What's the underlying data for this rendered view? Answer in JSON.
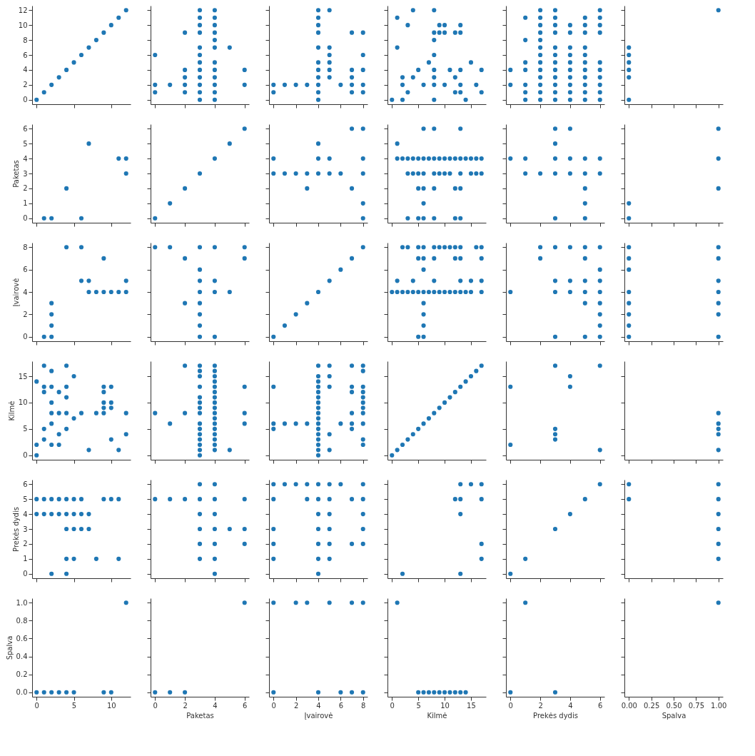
{
  "chart_data": [
    {
      "type": "scatter",
      "marker": "circle",
      "xlim": [
        -0.6,
        12.6
      ],
      "ylim": [
        -0.6,
        12.6
      ],
      "yticks": [
        0,
        2,
        4,
        6,
        8,
        10,
        12
      ],
      "tick_labels": "y",
      "series": [
        {
          "color": "#1f77b4",
          "x": [
            0,
            1,
            2,
            3,
            4,
            5,
            6,
            7,
            8,
            9,
            10,
            11,
            12
          ],
          "values": [
            0,
            1,
            2,
            3,
            4,
            5,
            6,
            7,
            8,
            9,
            10,
            11,
            12
          ]
        }
      ]
    },
    {
      "type": "scatter",
      "marker": "circle",
      "xlim": [
        -0.3,
        6.3
      ],
      "ylim": [
        -0.6,
        12.6
      ],
      "tick_labels": false,
      "series": [
        {
          "color": "#1f77b4",
          "x": [
            0,
            0,
            0,
            1,
            2,
            2,
            2,
            2,
            2,
            3,
            3,
            3,
            3,
            3,
            3,
            3,
            3,
            3,
            3,
            3,
            3,
            4,
            4,
            4,
            4,
            4,
            4,
            4,
            4,
            4,
            4,
            4,
            4,
            5,
            6,
            6
          ],
          "values": [
            6,
            2,
            1,
            2,
            9,
            4,
            3,
            2,
            1,
            12,
            11,
            10,
            9,
            7,
            6,
            5,
            4,
            3,
            2,
            1,
            0,
            12,
            11,
            10,
            9,
            8,
            7,
            5,
            4,
            3,
            2,
            1,
            0,
            7,
            4,
            2
          ]
        }
      ]
    },
    {
      "type": "scatter",
      "marker": "circle",
      "xlim": [
        -0.4,
        8.4
      ],
      "ylim": [
        -0.6,
        12.6
      ],
      "tick_labels": false,
      "series": [
        {
          "color": "#1f77b4",
          "x": [
            0,
            0,
            1,
            2,
            3,
            4,
            4,
            4,
            4,
            4,
            4,
            4,
            4,
            4,
            4,
            4,
            5,
            5,
            5,
            5,
            5,
            5,
            6,
            7,
            7,
            7,
            7,
            7,
            8,
            8,
            8,
            8,
            8
          ],
          "values": [
            2,
            1,
            2,
            2,
            2,
            12,
            11,
            10,
            9,
            7,
            5,
            4,
            3,
            2,
            1,
            0,
            12,
            7,
            6,
            5,
            4,
            3,
            2,
            9,
            4,
            3,
            2,
            1,
            9,
            6,
            4,
            2,
            1
          ]
        }
      ]
    },
    {
      "type": "scatter",
      "marker": "circle",
      "xlim": [
        -0.85,
        17.85
      ],
      "ylim": [
        -0.6,
        12.6
      ],
      "tick_labels": false,
      "series": [
        {
          "color": "#1f77b4",
          "x": [
            0,
            1,
            1,
            2,
            2,
            2,
            3,
            3,
            4,
            4,
            5,
            6,
            7,
            8,
            8,
            8,
            8,
            8,
            8,
            8,
            8,
            9,
            9,
            10,
            10,
            10,
            11,
            12,
            12,
            12,
            13,
            13,
            13,
            13,
            13,
            14,
            15,
            16,
            17,
            17
          ],
          "values": [
            0,
            11,
            7,
            3,
            2,
            0,
            10,
            1,
            12,
            3,
            4,
            2,
            5,
            12,
            9,
            8,
            6,
            4,
            3,
            2,
            0,
            10,
            9,
            10,
            9,
            2,
            4,
            9,
            3,
            1,
            10,
            9,
            4,
            2,
            1,
            0,
            5,
            2,
            4,
            1
          ]
        }
      ]
    },
    {
      "type": "scatter",
      "marker": "circle",
      "xlim": [
        -0.3,
        6.3
      ],
      "ylim": [
        -0.6,
        12.6
      ],
      "tick_labels": false,
      "series": [
        {
          "color": "#1f77b4",
          "x": [
            0,
            0,
            1,
            1,
            1,
            1,
            1,
            1,
            1,
            2,
            2,
            2,
            2,
            2,
            2,
            2,
            2,
            2,
            2,
            2,
            2,
            2,
            3,
            3,
            3,
            3,
            3,
            3,
            3,
            3,
            3,
            3,
            3,
            3,
            4,
            4,
            4,
            4,
            4,
            4,
            4,
            4,
            4,
            4,
            5,
            5,
            5,
            5,
            5,
            5,
            5,
            5,
            5,
            5,
            5,
            6,
            6,
            6,
            6,
            6,
            6,
            6,
            6,
            6,
            6
          ],
          "values": [
            4,
            2,
            11,
            8,
            5,
            4,
            2,
            1,
            0,
            12,
            11,
            10,
            9,
            8,
            7,
            6,
            5,
            4,
            3,
            2,
            1,
            0,
            12,
            11,
            10,
            9,
            7,
            6,
            5,
            4,
            3,
            2,
            1,
            0,
            10,
            9,
            7,
            6,
            5,
            4,
            3,
            2,
            1,
            0,
            11,
            10,
            9,
            7,
            6,
            5,
            4,
            3,
            2,
            1,
            0,
            12,
            11,
            10,
            9,
            5,
            4,
            3,
            2,
            1,
            0
          ]
        }
      ]
    },
    {
      "type": "scatter",
      "marker": "circle",
      "xlim": [
        -0.05,
        1.05
      ],
      "ylim": [
        -0.6,
        12.6
      ],
      "tick_labels": false,
      "series": [
        {
          "color": "#1f77b4",
          "x": [
            0,
            0,
            0,
            0,
            0,
            0,
            1
          ],
          "values": [
            7,
            6,
            5,
            4,
            3,
            0,
            12
          ]
        }
      ]
    },
    {
      "type": "scatter",
      "marker": "circle",
      "xlim": [
        -0.6,
        12.6
      ],
      "ylim": [
        -0.3,
        6.3
      ],
      "yticks": [
        0,
        1,
        2,
        3,
        4,
        5,
        6
      ],
      "ylabel": "Paketas",
      "tick_labels": "y",
      "series": [
        {
          "color": "#1f77b4",
          "x": [
            1,
            2,
            6,
            4,
            7,
            11,
            12,
            12
          ],
          "values": [
            0,
            0,
            0,
            2,
            5,
            4,
            4,
            3
          ]
        }
      ]
    },
    {
      "type": "scatter",
      "marker": "circle",
      "xlim": [
        -0.3,
        6.3
      ],
      "ylim": [
        -0.3,
        6.3
      ],
      "tick_labels": false,
      "series": [
        {
          "color": "#1f77b4",
          "x": [
            0,
            1,
            2,
            3,
            4,
            5,
            6
          ],
          "values": [
            0,
            1,
            2,
            3,
            4,
            5,
            6
          ]
        }
      ]
    },
    {
      "type": "scatter",
      "marker": "circle",
      "xlim": [
        -0.4,
        8.4
      ],
      "ylim": [
        -0.3,
        6.3
      ],
      "tick_labels": false,
      "series": [
        {
          "color": "#1f77b4",
          "x": [
            0,
            0,
            1,
            2,
            3,
            3,
            4,
            4,
            4,
            5,
            5,
            6,
            7,
            7,
            8,
            8,
            8,
            8,
            8
          ],
          "values": [
            4,
            3,
            3,
            3,
            3,
            2,
            5,
            4,
            3,
            4,
            3,
            3,
            6,
            2,
            6,
            4,
            3,
            1,
            0
          ]
        }
      ]
    },
    {
      "type": "scatter",
      "marker": "circle",
      "xlim": [
        -0.85,
        17.85
      ],
      "ylim": [
        -0.3,
        6.3
      ],
      "tick_labels": false,
      "series": [
        {
          "color": "#1f77b4",
          "x": [
            1,
            1,
            2,
            3,
            4,
            5,
            6,
            7,
            8,
            9,
            10,
            11,
            12,
            13,
            14,
            15,
            16,
            17,
            3,
            4,
            5,
            6,
            8,
            9,
            10,
            11,
            13,
            15,
            16,
            17,
            5,
            6,
            8,
            12,
            13,
            6,
            8,
            13,
            6,
            3,
            5,
            6,
            8,
            12,
            13
          ],
          "values": [
            5,
            4,
            4,
            4,
            4,
            4,
            4,
            4,
            4,
            4,
            4,
            4,
            4,
            4,
            4,
            4,
            4,
            4,
            3,
            3,
            3,
            3,
            3,
            3,
            3,
            3,
            3,
            3,
            3,
            3,
            2,
            2,
            2,
            2,
            2,
            6,
            6,
            6,
            1,
            0,
            0,
            0,
            0,
            0,
            0
          ]
        }
      ]
    },
    {
      "type": "scatter",
      "marker": "circle",
      "xlim": [
        -0.3,
        6.3
      ],
      "ylim": [
        -0.3,
        6.3
      ],
      "tick_labels": false,
      "series": [
        {
          "color": "#1f77b4",
          "x": [
            0,
            1,
            3,
            4,
            5,
            6,
            1,
            2,
            3,
            4,
            5,
            6,
            3,
            4,
            3,
            5,
            5,
            3,
            5
          ],
          "values": [
            4,
            4,
            4,
            4,
            4,
            4,
            3,
            3,
            3,
            3,
            3,
            3,
            6,
            6,
            5,
            2,
            1,
            0,
            0
          ]
        }
      ]
    },
    {
      "type": "scatter",
      "marker": "circle",
      "xlim": [
        -0.05,
        1.05
      ],
      "ylim": [
        -0.3,
        6.3
      ],
      "tick_labels": false,
      "series": [
        {
          "color": "#1f77b4",
          "x": [
            0,
            0,
            1,
            1,
            1
          ],
          "values": [
            1,
            0,
            6,
            4,
            2
          ]
        }
      ]
    },
    {
      "type": "scatter",
      "marker": "circle",
      "xlim": [
        -0.6,
        12.6
      ],
      "ylim": [
        -0.4,
        8.4
      ],
      "yticks": [
        0,
        2,
        4,
        6,
        8
      ],
      "ylabel": "Įvairovė",
      "tick_labels": "y",
      "series": [
        {
          "color": "#1f77b4",
          "x": [
            4,
            6,
            9,
            6,
            7,
            12,
            7,
            8,
            9,
            10,
            11,
            12,
            2,
            2,
            2,
            1,
            2
          ],
          "values": [
            8,
            8,
            7,
            5,
            5,
            5,
            4,
            4,
            4,
            4,
            4,
            4,
            3,
            2,
            1,
            0,
            0
          ]
        }
      ]
    },
    {
      "type": "scatter",
      "marker": "circle",
      "xlim": [
        -0.3,
        6.3
      ],
      "ylim": [
        -0.4,
        8.4
      ],
      "tick_labels": false,
      "series": [
        {
          "color": "#1f77b4",
          "x": [
            0,
            1,
            3,
            4,
            6,
            2,
            6,
            3,
            3,
            4,
            3,
            4,
            5,
            2,
            3,
            3,
            3,
            3,
            4
          ],
          "values": [
            8,
            8,
            8,
            8,
            8,
            7,
            7,
            6,
            5,
            5,
            4,
            4,
            4,
            3,
            3,
            2,
            1,
            0,
            0
          ]
        }
      ]
    },
    {
      "type": "scatter",
      "marker": "circle",
      "xlim": [
        -0.4,
        8.4
      ],
      "ylim": [
        -0.4,
        8.4
      ],
      "tick_labels": false,
      "series": [
        {
          "color": "#1f77b4",
          "x": [
            0,
            1,
            2,
            3,
            4,
            5,
            6,
            7,
            8
          ],
          "values": [
            0,
            1,
            2,
            3,
            4,
            5,
            6,
            7,
            8
          ]
        }
      ]
    },
    {
      "type": "scatter",
      "marker": "circle",
      "xlim": [
        -0.85,
        17.85
      ],
      "ylim": [
        -0.4,
        8.4
      ],
      "tick_labels": false,
      "series": [
        {
          "color": "#1f77b4",
          "x": [
            2,
            3,
            5,
            6,
            8,
            9,
            10,
            11,
            12,
            13,
            16,
            17,
            5,
            6,
            8,
            12,
            13,
            17,
            6,
            1,
            4,
            8,
            13,
            15,
            17,
            0,
            1,
            2,
            3,
            4,
            5,
            6,
            7,
            8,
            9,
            10,
            11,
            12,
            13,
            14,
            15,
            17,
            6,
            6,
            6,
            5,
            6
          ],
          "values": [
            8,
            8,
            8,
            8,
            8,
            8,
            8,
            8,
            8,
            8,
            8,
            8,
            7,
            7,
            7,
            7,
            7,
            7,
            6,
            5,
            5,
            5,
            5,
            5,
            5,
            4,
            4,
            4,
            4,
            4,
            4,
            4,
            4,
            4,
            4,
            4,
            4,
            4,
            4,
            4,
            4,
            4,
            3,
            2,
            1,
            0,
            0
          ]
        }
      ]
    },
    {
      "type": "scatter",
      "marker": "circle",
      "xlim": [
        -0.3,
        6.3
      ],
      "ylim": [
        -0.4,
        8.4
      ],
      "tick_labels": false,
      "series": [
        {
          "color": "#1f77b4",
          "x": [
            2,
            3,
            4,
            5,
            6,
            2,
            5,
            6,
            3,
            4,
            5,
            6,
            0,
            3,
            4,
            5,
            6,
            5,
            6,
            6,
            6,
            3,
            5,
            6
          ],
          "values": [
            8,
            8,
            8,
            8,
            8,
            7,
            7,
            6,
            5,
            5,
            5,
            5,
            4,
            4,
            4,
            4,
            4,
            3,
            3,
            2,
            1,
            0,
            0,
            0
          ]
        }
      ]
    },
    {
      "type": "scatter",
      "marker": "circle",
      "xlim": [
        -0.05,
        1.05
      ],
      "ylim": [
        -0.4,
        8.4
      ],
      "tick_labels": false,
      "series": [
        {
          "color": "#1f77b4",
          "x": [
            0,
            0,
            0,
            0,
            0,
            0,
            0,
            0,
            1,
            1,
            1,
            1,
            1,
            1,
            1
          ],
          "values": [
            8,
            7,
            6,
            4,
            3,
            2,
            1,
            0,
            8,
            7,
            5,
            4,
            3,
            2,
            0
          ]
        }
      ]
    },
    {
      "type": "scatter",
      "marker": "circle",
      "xlim": [
        -0.6,
        12.6
      ],
      "ylim": [
        -0.85,
        17.85
      ],
      "yticks": [
        0,
        5,
        10,
        15
      ],
      "ylabel": "Kilmė",
      "tick_labels": "y",
      "series": [
        {
          "color": "#1f77b4",
          "x": [
            0,
            0,
            0,
            1,
            1,
            1,
            1,
            1,
            2,
            2,
            2,
            2,
            2,
            2,
            3,
            3,
            3,
            3,
            4,
            4,
            4,
            4,
            4,
            5,
            5,
            6,
            7,
            8,
            9,
            9,
            9,
            9,
            9,
            10,
            10,
            10,
            10,
            11,
            12,
            12
          ],
          "values": [
            0,
            2,
            14,
            17,
            5,
            3,
            13,
            12,
            16,
            13,
            10,
            8,
            6,
            2,
            12,
            8,
            4,
            2,
            17,
            13,
            11,
            8,
            5,
            15,
            7,
            8,
            1,
            8,
            13,
            12,
            10,
            9,
            8,
            13,
            10,
            9,
            3,
            1,
            8,
            4
          ]
        }
      ]
    },
    {
      "type": "scatter",
      "marker": "circle",
      "xlim": [
        -0.3,
        6.3
      ],
      "ylim": [
        -0.85,
        17.85
      ],
      "tick_labels": false,
      "series": [
        {
          "color": "#1f77b4",
          "x": [
            0,
            1,
            2,
            2,
            3,
            3,
            3,
            3,
            3,
            3,
            3,
            3,
            3,
            3,
            3,
            3,
            3,
            3,
            3,
            4,
            4,
            4,
            4,
            4,
            4,
            4,
            4,
            4,
            4,
            4,
            4,
            4,
            4,
            4,
            4,
            4,
            5,
            6,
            6,
            6
          ],
          "values": [
            8,
            6,
            17,
            8,
            17,
            16,
            15,
            13,
            11,
            10,
            9,
            8,
            6,
            5,
            4,
            3,
            2,
            1,
            0,
            17,
            16,
            15,
            14,
            13,
            12,
            11,
            10,
            9,
            8,
            7,
            6,
            5,
            4,
            3,
            2,
            1,
            1,
            13,
            8,
            6
          ]
        }
      ]
    },
    {
      "type": "scatter",
      "marker": "circle",
      "xlim": [
        -0.4,
        8.4
      ],
      "ylim": [
        -0.85,
        17.85
      ],
      "tick_labels": false,
      "series": [
        {
          "color": "#1f77b4",
          "x": [
            0,
            0,
            0,
            1,
            2,
            3,
            4,
            4,
            4,
            4,
            4,
            4,
            4,
            4,
            4,
            4,
            4,
            4,
            4,
            4,
            4,
            4,
            4,
            5,
            5,
            5,
            5,
            5,
            6,
            7,
            7,
            7,
            7,
            7,
            7,
            8,
            8,
            8,
            8,
            8,
            8,
            8,
            8,
            8,
            8,
            8
          ],
          "values": [
            13,
            6,
            5,
            6,
            6,
            6,
            17,
            15,
            14,
            13,
            12,
            11,
            10,
            9,
            8,
            7,
            6,
            5,
            4,
            3,
            2,
            1,
            0,
            17,
            15,
            13,
            4,
            1,
            6,
            17,
            13,
            12,
            8,
            6,
            5,
            17,
            16,
            13,
            12,
            11,
            10,
            9,
            8,
            6,
            3,
            2
          ]
        }
      ]
    },
    {
      "type": "scatter",
      "marker": "circle",
      "xlim": [
        -0.85,
        17.85
      ],
      "ylim": [
        -0.85,
        17.85
      ],
      "tick_labels": false,
      "series": [
        {
          "color": "#1f77b4",
          "x": [
            0,
            1,
            2,
            3,
            4,
            5,
            6,
            7,
            8,
            9,
            10,
            11,
            12,
            13,
            14,
            15,
            16,
            17
          ],
          "values": [
            0,
            1,
            2,
            3,
            4,
            5,
            6,
            7,
            8,
            9,
            10,
            11,
            12,
            13,
            14,
            15,
            16,
            17
          ]
        }
      ]
    },
    {
      "type": "scatter",
      "marker": "circle",
      "xlim": [
        -0.3,
        6.3
      ],
      "ylim": [
        -0.85,
        17.85
      ],
      "tick_labels": false,
      "series": [
        {
          "color": "#1f77b4",
          "x": [
            0,
            0,
            3,
            3,
            3,
            3,
            4,
            4,
            6,
            6
          ],
          "values": [
            13,
            2,
            17,
            5,
            4,
            3,
            15,
            13,
            17,
            1
          ]
        }
      ]
    },
    {
      "type": "scatter",
      "marker": "circle",
      "xlim": [
        -0.05,
        1.05
      ],
      "ylim": [
        -0.85,
        17.85
      ],
      "tick_labels": false,
      "series": [
        {
          "color": "#1f77b4",
          "x": [
            1,
            1,
            1,
            1,
            1
          ],
          "values": [
            8,
            6,
            5,
            4,
            1
          ]
        }
      ]
    },
    {
      "type": "scatter",
      "marker": "circle",
      "xlim": [
        -0.6,
        12.6
      ],
      "ylim": [
        -0.3,
        6.3
      ],
      "yticks": [
        0,
        1,
        2,
        3,
        4,
        5,
        6
      ],
      "ylabel": "Prekės dydis",
      "tick_labels": "y",
      "series": [
        {
          "color": "#1f77b4",
          "x": [
            0,
            1,
            2,
            3,
            4,
            5,
            6,
            9,
            10,
            11,
            0,
            1,
            2,
            3,
            4,
            5,
            6,
            7,
            4,
            5,
            6,
            7,
            4,
            5,
            8,
            11,
            2,
            4
          ],
          "values": [
            5,
            5,
            5,
            5,
            5,
            5,
            5,
            5,
            5,
            5,
            4,
            4,
            4,
            4,
            4,
            4,
            4,
            4,
            3,
            3,
            3,
            3,
            1,
            1,
            1,
            1,
            0,
            0
          ]
        }
      ]
    },
    {
      "type": "scatter",
      "marker": "circle",
      "xlim": [
        -0.3,
        6.3
      ],
      "ylim": [
        -0.3,
        6.3
      ],
      "tick_labels": false,
      "series": [
        {
          "color": "#1f77b4",
          "x": [
            3,
            4,
            0,
            1,
            2,
            3,
            4,
            6,
            3,
            4,
            3,
            4,
            5,
            6,
            3,
            4,
            6,
            3,
            4,
            4
          ],
          "values": [
            6,
            6,
            5,
            5,
            5,
            5,
            5,
            5,
            4,
            4,
            3,
            3,
            3,
            3,
            2,
            2,
            2,
            1,
            1,
            0
          ]
        }
      ]
    },
    {
      "type": "scatter",
      "marker": "circle",
      "xlim": [
        -0.4,
        8.4
      ],
      "ylim": [
        -0.3,
        6.3
      ],
      "tick_labels": false,
      "series": [
        {
          "color": "#1f77b4",
          "x": [
            0,
            1,
            2,
            3,
            4,
            5,
            6,
            8,
            0,
            3,
            4,
            5,
            7,
            8,
            4,
            5,
            8,
            0,
            4,
            5,
            8,
            0,
            4,
            5,
            7,
            8,
            0,
            4,
            5,
            4
          ],
          "values": [
            6,
            6,
            6,
            6,
            6,
            6,
            6,
            6,
            5,
            5,
            5,
            5,
            5,
            5,
            4,
            4,
            4,
            3,
            3,
            3,
            3,
            2,
            2,
            2,
            2,
            2,
            1,
            1,
            1,
            0
          ]
        }
      ]
    },
    {
      "type": "scatter",
      "marker": "circle",
      "xlim": [
        -0.85,
        17.85
      ],
      "ylim": [
        -0.3,
        6.3
      ],
      "tick_labels": false,
      "series": [
        {
          "color": "#1f77b4",
          "x": [
            13,
            15,
            17,
            12,
            13,
            17,
            13,
            17,
            17,
            2,
            13
          ],
          "values": [
            6,
            6,
            6,
            5,
            5,
            5,
            4,
            2,
            1,
            0,
            0
          ]
        }
      ]
    },
    {
      "type": "scatter",
      "marker": "circle",
      "xlim": [
        -0.3,
        6.3
      ],
      "ylim": [
        -0.3,
        6.3
      ],
      "tick_labels": false,
      "series": [
        {
          "color": "#1f77b4",
          "x": [
            0,
            1,
            3,
            4,
            5,
            6
          ],
          "values": [
            0,
            1,
            3,
            4,
            5,
            6
          ]
        }
      ]
    },
    {
      "type": "scatter",
      "marker": "circle",
      "xlim": [
        -0.05,
        1.05
      ],
      "ylim": [
        -0.3,
        6.3
      ],
      "tick_labels": false,
      "series": [
        {
          "color": "#1f77b4",
          "x": [
            0,
            0,
            1,
            1,
            1,
            1,
            1,
            1
          ],
          "values": [
            6,
            5,
            6,
            5,
            4,
            3,
            2,
            1
          ]
        }
      ]
    },
    {
      "type": "scatter",
      "marker": "circle",
      "xlim": [
        -0.6,
        12.6
      ],
      "ylim": [
        -0.05,
        1.05
      ],
      "xticks": [
        0,
        5,
        10
      ],
      "yticks": [
        {
          "value": 0,
          "label": "0.0"
        },
        {
          "value": 0.2,
          "label": "0.2"
        },
        {
          "value": 0.4,
          "label": "0.4"
        },
        {
          "value": 0.6,
          "label": "0.6"
        },
        {
          "value": 0.8,
          "label": "0.8"
        },
        {
          "value": 1,
          "label": "1.0"
        }
      ],
      "ylabel": "Spalva",
      "series": [
        {
          "color": "#1f77b4",
          "x": [
            0,
            1,
            2,
            3,
            4,
            5,
            9,
            10,
            12
          ],
          "values": [
            0,
            0,
            0,
            0,
            0,
            0,
            0,
            0,
            1
          ]
        }
      ]
    },
    {
      "type": "scatter",
      "marker": "circle",
      "xlim": [
        -0.3,
        6.3
      ],
      "ylim": [
        -0.05,
        1.05
      ],
      "xticks": [
        0,
        2,
        4,
        6
      ],
      "xlabel": "Paketas",
      "tick_labels": "x",
      "series": [
        {
          "color": "#1f77b4",
          "x": [
            0,
            1,
            2,
            6
          ],
          "values": [
            0,
            0,
            0,
            1
          ]
        }
      ]
    },
    {
      "type": "scatter",
      "marker": "circle",
      "xlim": [
        -0.4,
        8.4
      ],
      "ylim": [
        -0.05,
        1.05
      ],
      "xticks": [
        0,
        2,
        4,
        6,
        8
      ],
      "xlabel": "Įvairovė",
      "tick_labels": "x",
      "series": [
        {
          "color": "#1f77b4",
          "x": [
            0,
            2,
            3,
            5,
            7,
            8,
            0,
            4,
            6,
            7,
            8
          ],
          "values": [
            1,
            1,
            1,
            1,
            1,
            1,
            0,
            0,
            0,
            0,
            0
          ]
        }
      ]
    },
    {
      "type": "scatter",
      "marker": "circle",
      "xlim": [
        -0.85,
        17.85
      ],
      "ylim": [
        -0.05,
        1.05
      ],
      "xticks": [
        0,
        5,
        10,
        15
      ],
      "xlabel": "Kilmė",
      "tick_labels": "x",
      "series": [
        {
          "color": "#1f77b4",
          "x": [
            1,
            5,
            6,
            7,
            8,
            9,
            10,
            11,
            12,
            13,
            14
          ],
          "values": [
            1,
            0,
            0,
            0,
            0,
            0,
            0,
            0,
            0,
            0,
            0
          ]
        }
      ]
    },
    {
      "type": "scatter",
      "marker": "circle",
      "xlim": [
        -0.3,
        6.3
      ],
      "ylim": [
        -0.05,
        1.05
      ],
      "xticks": [
        0,
        2,
        4,
        6
      ],
      "xlabel": "Prekės dydis",
      "tick_labels": "x",
      "series": [
        {
          "color": "#1f77b4",
          "x": [
            1,
            0,
            3
          ],
          "values": [
            1,
            0,
            0
          ]
        }
      ]
    },
    {
      "type": "scatter",
      "marker": "circle",
      "xlim": [
        -0.05,
        1.05
      ],
      "ylim": [
        -0.05,
        1.05
      ],
      "xticks": [
        {
          "value": 0,
          "label": "0.00"
        },
        {
          "value": 0.25,
          "label": "0.25"
        },
        {
          "value": 0.5,
          "label": "0.50"
        },
        {
          "value": 0.75,
          "label": "0.75"
        },
        {
          "value": 1,
          "label": "1.00"
        }
      ],
      "xlabel": "Spalva",
      "tick_labels": "x",
      "series": [
        {
          "color": "#1f77b4",
          "x": [
            1
          ],
          "values": [
            1
          ]
        }
      ]
    }
  ]
}
